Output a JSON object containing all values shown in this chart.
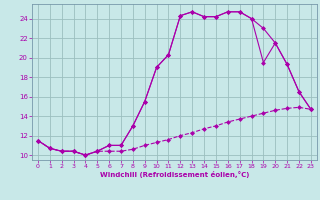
{
  "xlabel": "Windchill (Refroidissement éolien,°C)",
  "xlim": [
    -0.5,
    23.5
  ],
  "ylim": [
    9.5,
    25.5
  ],
  "yticks": [
    10,
    12,
    14,
    16,
    18,
    20,
    22,
    24
  ],
  "xticks": [
    0,
    1,
    2,
    3,
    4,
    5,
    6,
    7,
    8,
    9,
    10,
    11,
    12,
    13,
    14,
    15,
    16,
    17,
    18,
    19,
    20,
    21,
    22,
    23
  ],
  "bg_color": "#c8e8e8",
  "line_color": "#aa00aa",
  "grid_color": "#9bbfbf",
  "line1_x": [
    0,
    1,
    2,
    3,
    4,
    5,
    6,
    7,
    8,
    9,
    10,
    11,
    12,
    13,
    14,
    15,
    16,
    17,
    18,
    19,
    20,
    21,
    22,
    23
  ],
  "line1_y": [
    11.5,
    10.7,
    10.4,
    10.4,
    10.0,
    10.4,
    11.0,
    11.0,
    13.0,
    15.5,
    19.0,
    20.3,
    24.3,
    24.7,
    24.2,
    24.2,
    24.7,
    24.7,
    24.0,
    23.0,
    21.5,
    19.3,
    16.5,
    14.7
  ],
  "line2_x": [
    0,
    1,
    2,
    3,
    4,
    5,
    6,
    7,
    8,
    9,
    10,
    11,
    12,
    13,
    14,
    15,
    16,
    17,
    18,
    19,
    20,
    21,
    22,
    23
  ],
  "line2_y": [
    11.5,
    10.7,
    10.4,
    10.4,
    10.0,
    10.4,
    11.0,
    11.0,
    13.0,
    15.5,
    19.0,
    20.3,
    24.3,
    24.7,
    24.2,
    24.2,
    24.7,
    24.7,
    24.0,
    19.5,
    21.5,
    19.3,
    16.5,
    14.7
  ],
  "line3_x": [
    0,
    1,
    2,
    3,
    4,
    5,
    6,
    7,
    8,
    9,
    10,
    11,
    12,
    13,
    14,
    15,
    16,
    17,
    18,
    19,
    20,
    21,
    22,
    23
  ],
  "line3_y": [
    11.5,
    10.7,
    10.4,
    10.4,
    10.0,
    10.4,
    10.4,
    10.4,
    10.6,
    11.0,
    11.3,
    11.6,
    12.0,
    12.3,
    12.7,
    13.0,
    13.4,
    13.7,
    14.0,
    14.3,
    14.6,
    14.8,
    14.9,
    14.7
  ]
}
